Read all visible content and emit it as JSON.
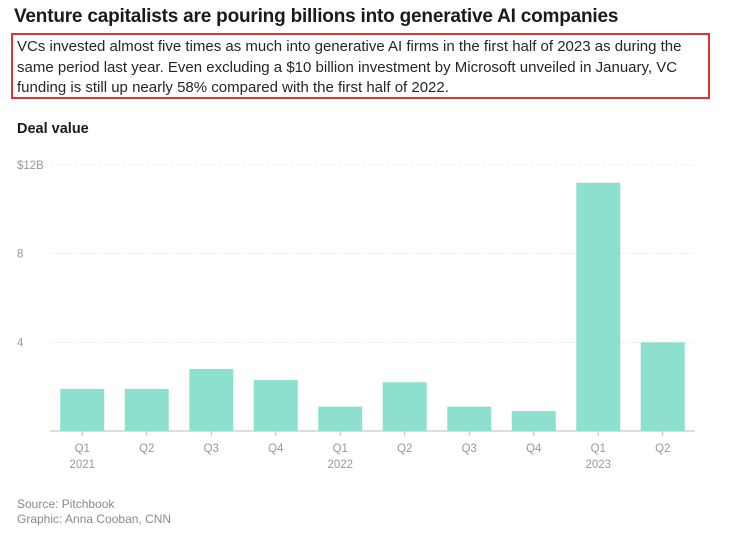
{
  "header": {
    "title": "Venture capitalists are pouring billions into generative AI companies",
    "subtitle": "VCs invested almost five times as much into generative AI firms in the first half of 2023 as during the same period last year. Even excluding a $10 billion investment by Microsoft unveiled in January, VC funding is still up nearly 58% compared with the first half of 2022."
  },
  "footer": {
    "source": "Source: Pitchbook",
    "credit": "Graphic: Anna Cooban, CNN"
  },
  "colors": {
    "bar": "#8de0cd",
    "highlight_border": "#e5322d",
    "grid": "#dddddd",
    "axis_text": "#999999"
  },
  "chart_data": {
    "type": "bar",
    "ylabel": "Deal value",
    "ylim": [
      0,
      12
    ],
    "yticks": [
      {
        "value": 12,
        "label": "$12B"
      },
      {
        "value": 8,
        "label": "8"
      },
      {
        "value": 4,
        "label": "4"
      }
    ],
    "grid": true,
    "categories": [
      "Q1",
      "Q2",
      "Q3",
      "Q4",
      "Q1",
      "Q2",
      "Q3",
      "Q4",
      "Q1",
      "Q2"
    ],
    "year_labels": [
      "2021",
      "",
      "",
      "",
      "2022",
      "",
      "",
      "",
      "2023",
      ""
    ],
    "values": [
      1.9,
      1.9,
      2.8,
      2.3,
      1.1,
      2.2,
      1.1,
      0.9,
      11.2,
      4.0
    ]
  }
}
